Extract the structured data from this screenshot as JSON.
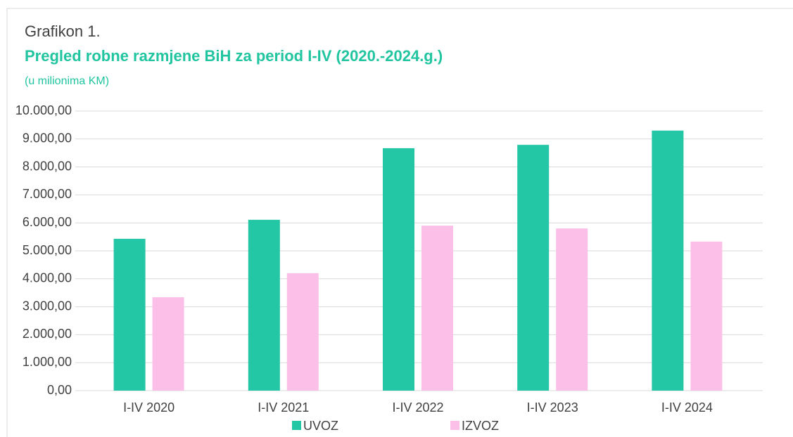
{
  "chart_data": {
    "type": "bar",
    "label": "Grafikon 1.",
    "title": "Pregled robne razmjene BiH za period I-IV (2020.-2024.g.)",
    "subtitle": "(u milionima KM)",
    "categories": [
      "I-IV 2020",
      "I-IV 2021",
      "I-IV 2022",
      "I-IV 2023",
      "I-IV 2024"
    ],
    "series": [
      {
        "name": "UVOZ",
        "color": "#23c6a5",
        "values": [
          5430,
          6110,
          8670,
          8790,
          9300
        ]
      },
      {
        "name": "IZVOZ",
        "color": "#fcc0e8",
        "values": [
          3340,
          4200,
          5900,
          5800,
          5330
        ]
      }
    ],
    "ylim": [
      0,
      10000
    ],
    "yticks": [
      {
        "value": 0,
        "label": "0,00"
      },
      {
        "value": 1000,
        "label": "1.000,00"
      },
      {
        "value": 2000,
        "label": "2.000,00"
      },
      {
        "value": 3000,
        "label": "3.000,00"
      },
      {
        "value": 4000,
        "label": "4.000,00"
      },
      {
        "value": 5000,
        "label": "5.000,00"
      },
      {
        "value": 6000,
        "label": "6.000,00"
      },
      {
        "value": 7000,
        "label": "7.000,00"
      },
      {
        "value": 8000,
        "label": "8.000,00"
      },
      {
        "value": 9000,
        "label": "9.000,00"
      },
      {
        "value": 10000,
        "label": "10.000,00"
      }
    ],
    "grid": true,
    "legend": "bottom"
  }
}
